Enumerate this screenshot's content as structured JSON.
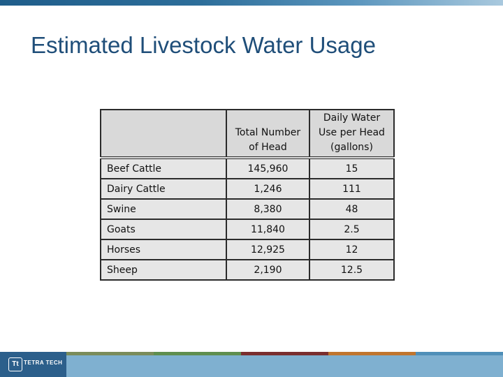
{
  "title": "Estimated Livestock Water Usage",
  "table": {
    "headers": [
      "",
      "Total Number of Head",
      "Daily Water Use per Head (gallons)"
    ],
    "header_lines": {
      "col2": [
        "Total Number",
        "of Head"
      ],
      "col3": [
        "Daily Water",
        "Use per Head",
        "(gallons)"
      ]
    },
    "rows": [
      {
        "animal": "Beef Cattle",
        "head": "145,960",
        "use": "15"
      },
      {
        "animal": "Dairy Cattle",
        "head": "1,246",
        "use": "111"
      },
      {
        "animal": "Swine",
        "head": "8,380",
        "use": "48"
      },
      {
        "animal": "Goats",
        "head": "11,840",
        "use": "2.5"
      },
      {
        "animal": "Horses",
        "head": "12,925",
        "use": "12"
      },
      {
        "animal": "Sheep",
        "head": "2,190",
        "use": "12.5"
      }
    ]
  },
  "footer": {
    "logo_mark": "Tt",
    "logo_text": "TETRA TECH",
    "segment_colors": [
      "#2c5f8b",
      "#7a8c5a",
      "#5f8e4e",
      "#7a2e2e",
      "#c0752e",
      "#4f8fb8"
    ]
  },
  "colors": {
    "title": "#1f4e79",
    "brand": "#2c5f8b"
  }
}
